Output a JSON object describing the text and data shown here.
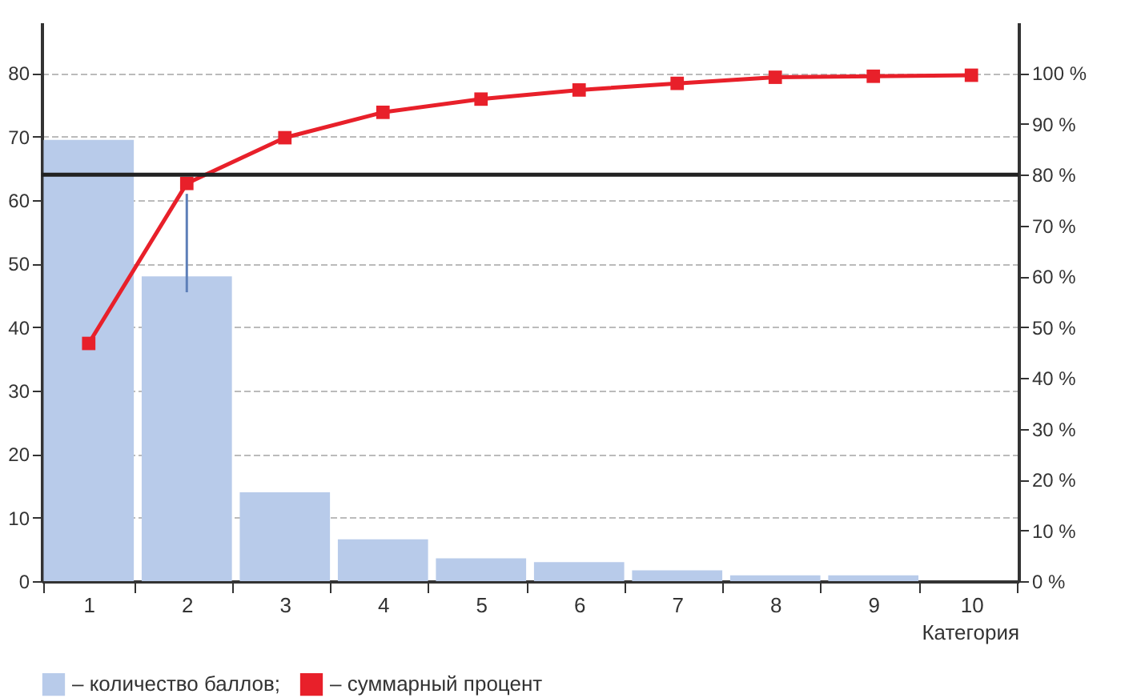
{
  "chart_data": {
    "type": "bar",
    "xlabel": "Категория",
    "categories": [
      "1",
      "2",
      "3",
      "4",
      "5",
      "6",
      "7",
      "8",
      "9",
      "10"
    ],
    "series": [
      {
        "name": "– количество баллов;",
        "color": "#b8cbea",
        "values": [
          69.5,
          48,
          14,
          6.6,
          3.6,
          3,
          1.7,
          0.9,
          0.9,
          0
        ],
        "errors": [
          null,
          [
            45.5,
            61
          ],
          null,
          null,
          null,
          null,
          null,
          null,
          null,
          null
        ]
      },
      {
        "name": "– суммарный процент",
        "type": "line",
        "axis": "y2",
        "color": "#e8202a",
        "marker": "square",
        "line_style": "solid",
        "values": [
          46.8,
          78.3,
          87.3,
          92.3,
          94.9,
          96.7,
          98,
          99.2,
          99.4,
          99.6
        ]
      }
    ],
    "ylim": [
      0,
      88
    ],
    "yticks": [
      0,
      10,
      20,
      30,
      40,
      50,
      60,
      70,
      80
    ],
    "y2lim": [
      0,
      110
    ],
    "y2ticks": [
      {
        "value": 0,
        "label": "0 %"
      },
      {
        "value": 10,
        "label": "10 %"
      },
      {
        "value": 20,
        "label": "20 %"
      },
      {
        "value": 30,
        "label": "30 %"
      },
      {
        "value": 40,
        "label": "40 %"
      },
      {
        "value": 50,
        "label": "50 %"
      },
      {
        "value": 60,
        "label": "60 %"
      },
      {
        "value": 70,
        "label": "70 %"
      },
      {
        "value": 80,
        "label": "80 %"
      },
      {
        "value": 90,
        "label": "90 %"
      },
      {
        "value": 100,
        "label": "100 %"
      }
    ],
    "ref_lines": [
      {
        "axis": "y2",
        "value": 80,
        "color": "#222222"
      }
    ],
    "grid": "y",
    "legend": "bottom"
  }
}
